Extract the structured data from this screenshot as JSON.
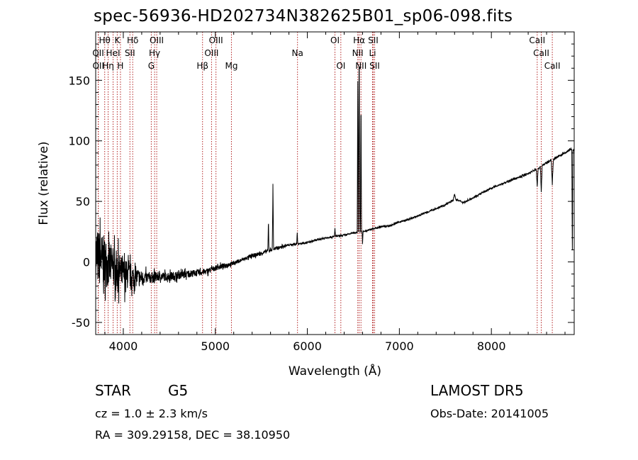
{
  "title": "spec-56936-HD202734N382625B01_sp06-098.fits",
  "info": {
    "class": "STAR",
    "subclass": "G5",
    "survey": "LAMOST  DR5",
    "redshift": "cz = 1.0 ± 2.3 km/s",
    "obs_date": "Obs-Date: 20141005",
    "coords": "RA = 309.29158, DEC =  38.10950"
  },
  "colors": {
    "spectrum": "#000000",
    "line_marker": "#b22222",
    "axis": "#000000"
  },
  "chart_data": {
    "type": "line",
    "xlabel": "Wavelength (Å)",
    "ylabel": "Flux (relative)",
    "xlim": [
      3700,
      8900
    ],
    "ylim": [
      -60,
      190
    ],
    "xticks": [
      4000,
      5000,
      6000,
      7000,
      8000
    ],
    "yticks": [
      -50,
      0,
      50,
      100,
      150
    ],
    "grid": false,
    "legend": "none",
    "lines": [
      {
        "label": "Hθ",
        "x": 3798,
        "row": 0
      },
      {
        "label": "OII",
        "x": 3727,
        "row": 1
      },
      {
        "label": "OII",
        "x": 3729,
        "row": 2
      },
      {
        "label": "Hη",
        "x": 3835,
        "row": 2
      },
      {
        "label": "K",
        "x": 3934,
        "row": 0
      },
      {
        "label": "HeI",
        "x": 3889,
        "row": 1
      },
      {
        "label": "H",
        "x": 3969,
        "row": 2
      },
      {
        "label": "Hδ",
        "x": 4102,
        "row": 0
      },
      {
        "label": "SII",
        "x": 4072,
        "row": 1
      },
      {
        "label": "OIII",
        "x": 4363,
        "row": 0
      },
      {
        "label": "Hγ",
        "x": 4340,
        "row": 1
      },
      {
        "label": "G",
        "x": 4304,
        "row": 2
      },
      {
        "label": "Hβ",
        "x": 4861,
        "row": 2
      },
      {
        "label": "OIII",
        "x": 5007,
        "row": 0
      },
      {
        "label": "OIII",
        "x": 4959,
        "row": 1
      },
      {
        "label": "Mg",
        "x": 5175,
        "row": 2
      },
      {
        "label": "Na",
        "x": 5893,
        "row": 1
      },
      {
        "label": "OI",
        "x": 6300,
        "row": 0
      },
      {
        "label": "OI",
        "x": 6364,
        "row": 2
      },
      {
        "label": "Hα",
        "x": 6563,
        "row": 0
      },
      {
        "label": "NII",
        "x": 6548,
        "row": 1
      },
      {
        "label": "NII",
        "x": 6583,
        "row": 2
      },
      {
        "label": "SII",
        "x": 6716,
        "row": 0
      },
      {
        "label": "Li",
        "x": 6708,
        "row": 1
      },
      {
        "label": "SII",
        "x": 6731,
        "row": 2
      },
      {
        "label": "CaII",
        "x": 8498,
        "row": 0
      },
      {
        "label": "CaII",
        "x": 8542,
        "row": 1
      },
      {
        "label": "CaII",
        "x": 8662,
        "row": 2
      }
    ],
    "continuum": [
      [
        3700,
        5
      ],
      [
        3800,
        0
      ],
      [
        3900,
        -5
      ],
      [
        4000,
        -10
      ],
      [
        4100,
        -12
      ],
      [
        4200,
        -13
      ],
      [
        4300,
        -13
      ],
      [
        4400,
        -12
      ],
      [
        4500,
        -12
      ],
      [
        4600,
        -11
      ],
      [
        4700,
        -10
      ],
      [
        4800,
        -9
      ],
      [
        4900,
        -8
      ],
      [
        5000,
        -5
      ],
      [
        5100,
        -3
      ],
      [
        5200,
        -1
      ],
      [
        5300,
        2
      ],
      [
        5400,
        5
      ],
      [
        5500,
        7
      ],
      [
        5600,
        10
      ],
      [
        5700,
        12
      ],
      [
        5800,
        14
      ],
      [
        5900,
        15
      ],
      [
        6000,
        16
      ],
      [
        6100,
        18
      ],
      [
        6200,
        20
      ],
      [
        6300,
        21
      ],
      [
        6400,
        22
      ],
      [
        6500,
        24
      ],
      [
        6600,
        25
      ],
      [
        6700,
        27
      ],
      [
        6800,
        29
      ],
      [
        6900,
        30
      ],
      [
        7000,
        33
      ],
      [
        7100,
        35
      ],
      [
        7200,
        38
      ],
      [
        7300,
        41
      ],
      [
        7400,
        44
      ],
      [
        7500,
        47
      ],
      [
        7600,
        52
      ],
      [
        7700,
        49
      ],
      [
        7800,
        53
      ],
      [
        7900,
        57
      ],
      [
        8000,
        61
      ],
      [
        8100,
        64
      ],
      [
        8200,
        67
      ],
      [
        8300,
        70
      ],
      [
        8400,
        73
      ],
      [
        8500,
        77
      ],
      [
        8600,
        82
      ],
      [
        8700,
        86
      ],
      [
        8800,
        90
      ],
      [
        8860,
        93
      ],
      [
        8880,
        92
      ]
    ],
    "noise": [
      [
        3700,
        45
      ],
      [
        3800,
        38
      ],
      [
        3900,
        30
      ],
      [
        4000,
        24
      ],
      [
        4100,
        18
      ],
      [
        4200,
        10
      ],
      [
        4400,
        7
      ],
      [
        4600,
        6
      ],
      [
        4800,
        5
      ],
      [
        5000,
        4
      ],
      [
        5200,
        3
      ],
      [
        5600,
        3
      ],
      [
        5800,
        1.5
      ],
      [
        6500,
        1.2
      ],
      [
        7500,
        1.2
      ],
      [
        8500,
        1.5
      ],
      [
        8900,
        1.8
      ]
    ],
    "features": [
      {
        "x": 6563,
        "y": 180,
        "width": 8
      },
      {
        "x": 6548,
        "y": 150,
        "width": 6
      },
      {
        "x": 6583,
        "y": 140,
        "width": 6
      },
      {
        "x": 6600,
        "y": 15,
        "width": 5
      },
      {
        "x": 5577,
        "y": 35,
        "width": 6
      },
      {
        "x": 5626,
        "y": 63,
        "width": 7
      },
      {
        "x": 5890,
        "y": 25,
        "width": 6
      },
      {
        "x": 6300,
        "y": 28,
        "width": 6
      },
      {
        "x": 7600,
        "y": 56,
        "width": 14
      },
      {
        "x": 8498,
        "y": 62,
        "width": 10
      },
      {
        "x": 8542,
        "y": 58,
        "width": 10
      },
      {
        "x": 8662,
        "y": 65,
        "width": 12
      },
      {
        "x": 8880,
        "y": 10,
        "width": 6
      }
    ]
  }
}
